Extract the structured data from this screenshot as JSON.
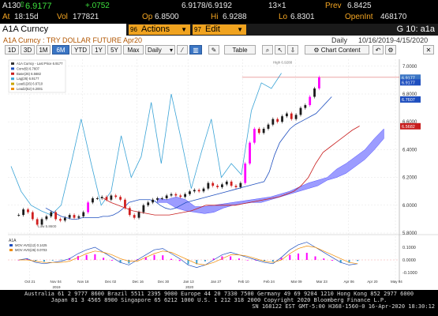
{
  "quote": {
    "ticker": "A130",
    "last": "6.9177",
    "change": "+.0752",
    "bid_ask": "6.9178/6.9192",
    "size": "13×1",
    "prev_label": "Prev",
    "prev": "6.8425",
    "time_label": "At",
    "time": "18:15d",
    "vol_label": "Vol",
    "vol": "177821",
    "op_label": "Op",
    "op": "6.8500",
    "hi_label": "Hi",
    "hi": "6.9288",
    "lo_label": "Lo",
    "lo": "6.8301",
    "oi_label": "OpenInt",
    "oi": "468170"
  },
  "function_bar": {
    "security": "A1A Curncy",
    "actions_num": "96",
    "actions": "Actions",
    "edit_num": "97",
    "edit": "Edit",
    "page": "G 10: a1a"
  },
  "chart_header": {
    "title": "A1A Curncy : TRY DOLLAR FUTURE Apr20",
    "period": "Daily",
    "range": "10/16/2019-4/15/2020"
  },
  "toolbar": {
    "ranges": [
      "1D",
      "3D",
      "1M",
      "6M",
      "YTD",
      "1Y",
      "5Y",
      "Max"
    ],
    "active_range": "6M",
    "frequency": "Daily",
    "table_label": "Table",
    "chart_content_label": "Chart Content"
  },
  "legend": {
    "items": [
      "A1A Curncy - Last Price 6.9177",
      "Conv(9) 6.7607",
      "Base(26) 6.5682",
      "Lag(26) 6.9177",
      "Lead1(26) 6.6710",
      "Lead2(52) 6.2001"
    ]
  },
  "axis": {
    "y_ticks": [
      "7.0000",
      "6.8000",
      "6.6000",
      "6.4000",
      "6.2000",
      "6.0000",
      "5.8000"
    ],
    "x_ticks": [
      "Oct 21",
      "Nov 18",
      "Dec 16",
      "Jan 13",
      "Feb 10",
      "Mar 09",
      "Apr 06",
      "May 04"
    ],
    "x_ticks_minor": [
      "Nov 04",
      "Dec 02",
      "Dec 30",
      "Jan 27",
      "Feb 24",
      "Mar 23",
      "Apr 20",
      "May 18"
    ],
    "year_labels": [
      "2019",
      "2020"
    ],
    "price_tags": [
      "6.9177",
      "6.9177",
      "6.7607",
      "6.5682"
    ],
    "low_label": "Low 5.8600",
    "high_label": "High 6.9288"
  },
  "macd_panel": {
    "title": "A1A",
    "legend": [
      "MOV AVG(12) 0.1425",
      "MOV AVG(26) 0.0703"
    ],
    "y_ticks": [
      "0.1000",
      "0.0000",
      "-0.1000"
    ]
  },
  "news": {
    "line1": "Australia 61 2 9777 8600 Brazil 5511 2395 9000 Europe 44 20 7330 7500 Germany 49 69 9204 1210 Hong Kong 852 2977 6000",
    "line2": "Japan 81 3 4565 8900          Singapore 65 6212 1000          U.S. 1 212 318 2000          Copyright 2020 Bloomberg Finance L.P.",
    "line3": "SN 168122 EST  GMT-5:00 H368-1560-0 16-Apr-2020 18:30:12"
  },
  "colors": {
    "up": "#1a1a1a",
    "down": "#d01f1f",
    "highlight": "#ff00ff",
    "cloud": "#7b7bff",
    "conversion": "#1f4fbf",
    "base": "#c81e1e",
    "lag": "#39a3d6",
    "accent": "#f0a31f"
  },
  "chart_data": {
    "type": "candlestick",
    "title": "A1A Curncy : TRY DOLLAR FUTURE Apr20",
    "period": "Daily",
    "range": [
      "10/16/2019",
      "4/15/2020"
    ],
    "ylim": [
      5.8,
      7.05
    ],
    "series": [
      {
        "name": "Close",
        "values": [
          5.93,
          5.97,
          5.95,
          5.9,
          5.86,
          5.9,
          5.92,
          5.95,
          5.9,
          5.89,
          5.91,
          5.93,
          5.91,
          5.92,
          5.95,
          6.02,
          6.05,
          6.05,
          6.06,
          6.04,
          6.07,
          6.06,
          6.04,
          5.98,
          5.93,
          5.91,
          5.95,
          6.0,
          6.02,
          6.04,
          6.05,
          6.05,
          6.07,
          6.08,
          6.07,
          6.06,
          6.08,
          6.1,
          6.11,
          6.1,
          6.12,
          6.16,
          6.14,
          6.13,
          6.15,
          6.17,
          6.14,
          6.13,
          6.16,
          6.3,
          6.45,
          6.55,
          6.52,
          6.55,
          6.58,
          6.62,
          6.6,
          6.64,
          6.66,
          6.62,
          6.65,
          6.7,
          6.72,
          6.78,
          6.84,
          6.92
        ]
      },
      {
        "name": "Conv(9)",
        "values": [
          5.98,
          5.96,
          5.94,
          5.92,
          5.91,
          5.9,
          5.9,
          5.91,
          5.91,
          5.91,
          5.91,
          5.92,
          5.92,
          5.93,
          5.95,
          5.98,
          6.02,
          6.03,
          6.04,
          6.04,
          6.04,
          6.03,
          6.0,
          5.98,
          5.97,
          5.98,
          6.0,
          6.02,
          6.03,
          6.04,
          6.05,
          6.06,
          6.07,
          6.08,
          6.09,
          6.1,
          6.11,
          6.12,
          6.13,
          6.14,
          6.15,
          6.16,
          6.17,
          6.24,
          6.36,
          6.45,
          6.5,
          6.55,
          6.58,
          6.6,
          6.62,
          6.64,
          6.66,
          6.7,
          6.74,
          6.78
        ]
      },
      {
        "name": "Base(26)",
        "values": [
          6.05,
          6.02,
          6.0,
          5.98,
          5.96,
          5.95,
          5.94,
          5.93,
          5.93,
          5.93,
          5.94,
          5.95,
          5.96,
          5.98,
          6.0,
          6.0,
          6.0,
          6.0,
          6.0,
          6.01,
          6.02,
          6.03,
          6.04,
          6.05,
          6.06,
          6.08,
          6.1,
          6.14,
          6.2,
          6.3,
          6.38,
          6.42,
          6.46,
          6.5,
          6.54,
          6.57
        ]
      },
      {
        "name": "Lag(26)",
        "values": [
          6.28,
          6.1,
          6.0,
          5.96,
          5.93,
          6.0,
          6.3,
          6.62,
          6.3,
          6.0,
          6.1,
          6.5,
          6.2,
          6.35,
          6.74,
          6.3,
          6.8,
          6.47,
          6.12,
          6.38,
          6.62,
          6.2,
          6.3,
          6.22,
          6.68,
          6.88,
          6.84,
          6.95
        ]
      },
      {
        "name": "Lead1(26)",
        "values": [
          6.05,
          6.04,
          6.06,
          6.04,
          5.99,
          5.96,
          5.97,
          6.0,
          6.02,
          6.03,
          6.04,
          6.04,
          6.06,
          6.08,
          6.1,
          6.12,
          6.14,
          6.16,
          6.2,
          6.26,
          6.3,
          6.35,
          6.4,
          6.48,
          6.55
        ]
      },
      {
        "name": "Lead2(52)",
        "values": [
          6.04,
          6.04,
          6.0,
          5.98,
          5.97,
          5.99,
          6.0,
          6.01,
          6.02,
          6.03,
          6.04,
          6.05,
          6.06,
          6.08,
          6.1,
          6.13,
          6.16,
          6.18,
          6.2,
          6.22,
          6.25,
          6.3,
          6.35,
          6.42,
          6.5
        ]
      },
      {
        "name": "MOV AVG(12)",
        "values": [
          0.0,
          0.01,
          -0.02,
          -0.03,
          -0.02,
          -0.01,
          0.01,
          0.05,
          0.08,
          0.1,
          0.06,
          0.02,
          -0.02,
          -0.04,
          0.0,
          0.04,
          0.08,
          0.09,
          0.05,
          0.01,
          -0.04,
          -0.06,
          -0.04,
          0.0,
          0.04,
          0.06,
          0.04,
          0.02,
          0.0,
          -0.02,
          -0.03,
          0.02,
          0.08,
          0.12,
          0.14,
          0.1,
          0.06,
          0.02,
          -0.02,
          -0.04,
          -0.03
        ]
      },
      {
        "name": "MOV AVG(26)",
        "values": [
          0.0,
          0.0,
          -0.01,
          -0.02,
          -0.02,
          -0.02,
          -0.01,
          0.02,
          0.05,
          0.07,
          0.06,
          0.04,
          0.01,
          -0.01,
          -0.01,
          0.02,
          0.05,
          0.07,
          0.06,
          0.03,
          0.0,
          -0.03,
          -0.04,
          -0.02,
          0.01,
          0.04,
          0.04,
          0.03,
          0.01,
          -0.01,
          -0.02,
          0.0,
          0.05,
          0.09,
          0.11,
          0.1,
          0.07,
          0.04,
          0.01,
          -0.02,
          -0.03
        ]
      }
    ],
    "legend_position": "top-left",
    "grid": true
  }
}
